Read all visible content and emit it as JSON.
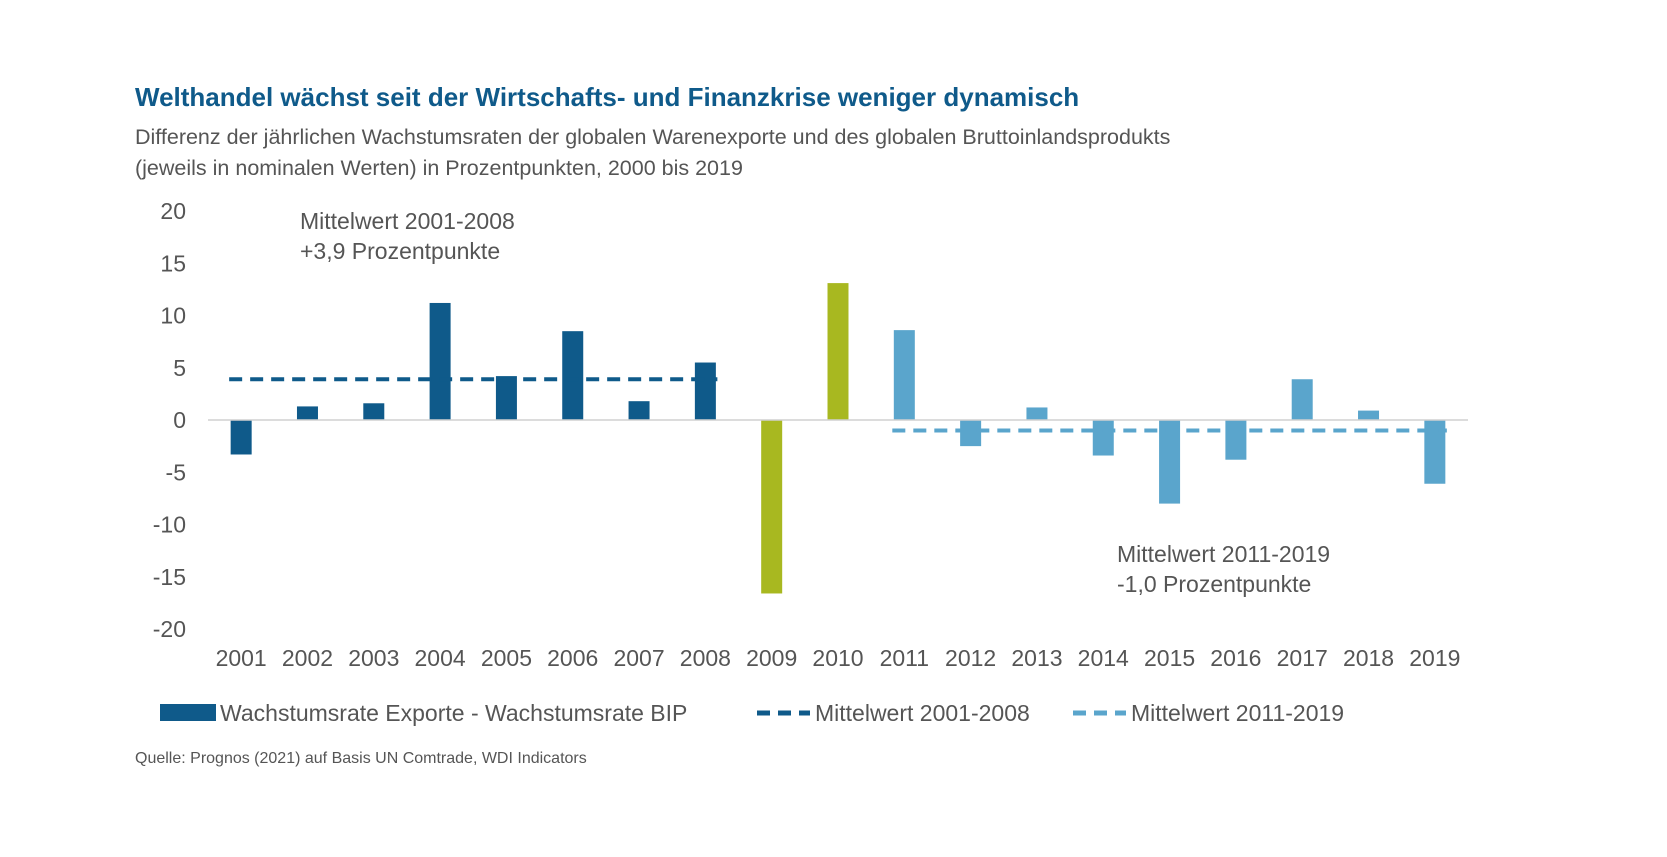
{
  "title": "Welthandel wächst seit der Wirtschafts- und Finanzkrise weniger dynamisch",
  "subtitle_line1": "Differenz der jährlichen Wachstumsraten der globalen Warenexporte und des globalen Bruttoinlandsprodukts",
  "subtitle_line2": "(jeweils in nominalen Werten) in Prozentpunkten, 2000 bis 2019",
  "source": "Quelle: Prognos (2021) auf Basis UN Comtrade, WDI Indicators",
  "annotations": {
    "mean1_line1": "Mittelwert 2001-2008",
    "mean1_line2": "+3,9 Prozentpunkte",
    "mean2_line1": "Mittelwert 2011-2019",
    "mean2_line2": "-1,0 Prozentpunkte"
  },
  "legend": {
    "bars": "Wachstumsrate Exporte - Wachstumsrate BIP",
    "mean1": "Mittelwert 2001-2008",
    "mean2": "Mittelwert 2011-2019"
  },
  "colors": {
    "dark_blue": "#0f5a8a",
    "olive": "#a8b820",
    "light_blue": "#5aa5cc",
    "axis": "#d0d0d0"
  },
  "chart_data": {
    "type": "bar",
    "categories": [
      "2001",
      "2002",
      "2003",
      "2004",
      "2005",
      "2006",
      "2007",
      "2008",
      "2009",
      "2010",
      "2011",
      "2012",
      "2013",
      "2014",
      "2015",
      "2016",
      "2017",
      "2018",
      "2019"
    ],
    "series": [
      {
        "name": "Wachstumsrate Exporte - Wachstumsrate BIP",
        "values": [
          -3.3,
          1.3,
          1.6,
          11.2,
          4.2,
          8.5,
          1.8,
          5.5,
          -16.6,
          13.1,
          8.6,
          -2.5,
          1.2,
          -3.4,
          -8.0,
          -3.8,
          3.9,
          0.9,
          -6.1
        ]
      }
    ],
    "means": [
      {
        "name": "Mittelwert 2001-2008",
        "value": 3.9,
        "from": "2001",
        "to": "2008"
      },
      {
        "name": "Mittelwert 2011-2019",
        "value": -1.0,
        "from": "2011",
        "to": "2019"
      }
    ],
    "ylim": [
      -20,
      20
    ],
    "yticks": [
      20,
      15,
      10,
      5,
      0,
      -5,
      -10,
      -15,
      -20
    ],
    "xlabel": "",
    "ylabel": "",
    "grid": false,
    "legend_position": "bottom"
  }
}
